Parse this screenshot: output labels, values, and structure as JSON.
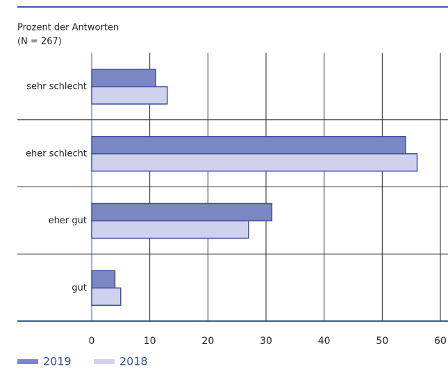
{
  "chart_data": {
    "type": "bar",
    "orientation": "horizontal",
    "title": "Prozent der Antworten",
    "subtitle": "(N = 267)",
    "categories": [
      "sehr schlecht",
      "eher schlecht",
      "eher gut",
      "gut"
    ],
    "series": [
      {
        "name": "2019",
        "color": "#7b87c2",
        "values": [
          11,
          54,
          31,
          4
        ]
      },
      {
        "name": "2018",
        "color": "#d0d1ed",
        "values": [
          13,
          56,
          27,
          5
        ]
      }
    ],
    "xlim": [
      0,
      60
    ],
    "xticks": [
      0,
      10,
      20,
      30,
      40,
      50,
      60
    ],
    "grid": true
  }
}
